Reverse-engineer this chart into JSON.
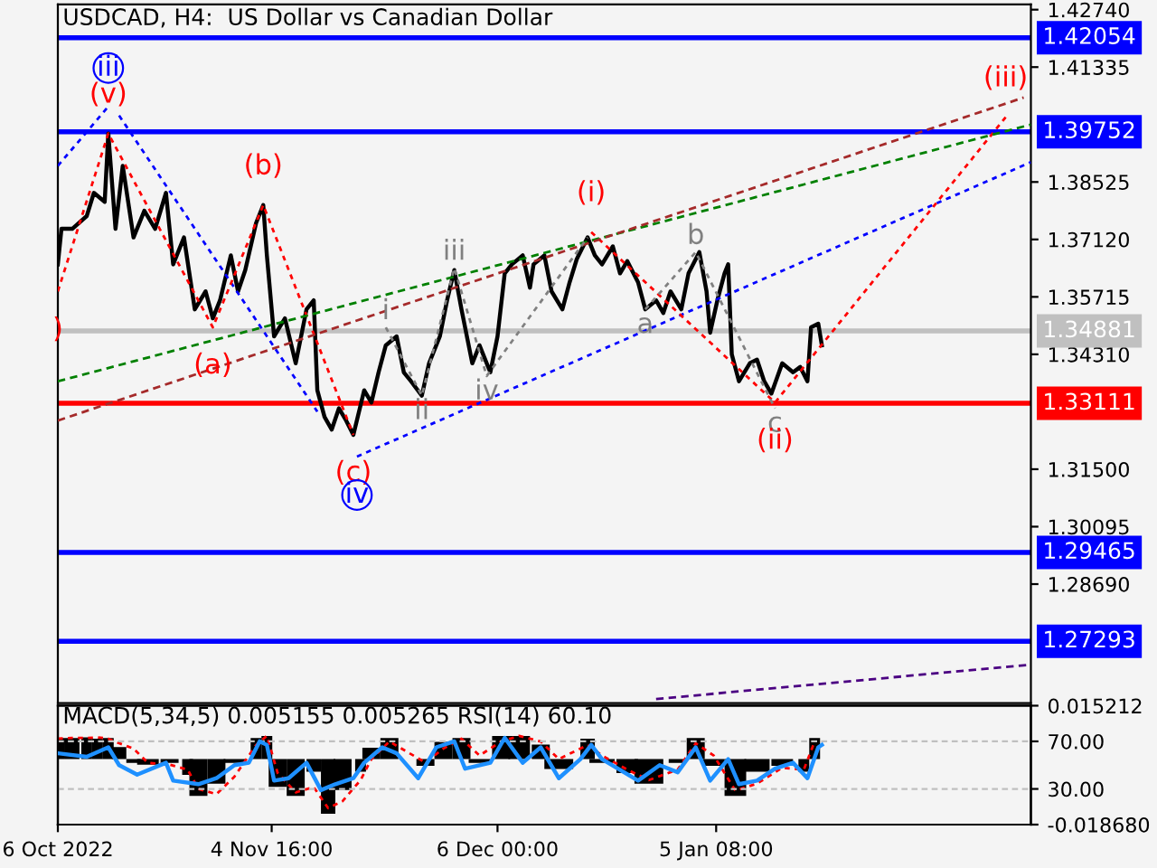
{
  "chart_data": [
    {
      "type": "line",
      "title": "USDCAD, H4:  US Dollar vs Canadian Dollar",
      "tick_labels": "y",
      "grid": false,
      "legend": false,
      "x": [
        "2022-10-06T00:00",
        "2022-10-06T12:00",
        "2022-10-08T00:00",
        "2022-10-10T00:00",
        "2022-10-11T00:00",
        "2022-10-12T12:00",
        "2022-10-13T00:00",
        "2022-10-14T00:00",
        "2022-10-15T00:00",
        "2022-10-16T12:00",
        "2022-10-18T00:00",
        "2022-10-19T12:00",
        "2022-10-21T00:00",
        "2022-10-22T00:00",
        "2022-10-23T12:00",
        "2022-10-25T00:00",
        "2022-10-26T12:00",
        "2022-10-27T12:00",
        "2022-10-28T12:00",
        "2022-10-30T00:00",
        "2022-10-31T00:00",
        "2022-11-01T00:00",
        "2022-11-02T12:00",
        "2022-11-03T12:00",
        "2022-11-04T00:00",
        "2022-11-05T00:00",
        "2022-11-06T12:00",
        "2022-11-08T00:00",
        "2022-11-09T12:00",
        "2022-11-10T12:00",
        "2022-11-11T00:00",
        "2022-11-12T00:00",
        "2022-11-13T00:00",
        "2022-11-14T00:00",
        "2022-11-15T00:00",
        "2022-11-16T00:00",
        "2022-11-17T12:00",
        "2022-11-18T12:00",
        "2022-11-19T12:00",
        "2022-11-20T12:00",
        "2022-11-22T00:00",
        "2022-11-23T00:00",
        "2022-11-24T00:00",
        "2022-11-25T12:00",
        "2022-11-26T12:00",
        "2022-11-28T00:00",
        "2022-11-29T00:00",
        "2022-11-30T00:00",
        "2022-12-01T00:00",
        "2022-12-02T12:00",
        "2022-12-03T12:00",
        "2022-12-05T00:00",
        "2022-12-06T00:00",
        "2022-12-07T00:00",
        "2022-12-08T00:00",
        "2022-12-09T12:00",
        "2022-12-10T12:00",
        "2022-12-11T00:00",
        "2022-12-12T12:00",
        "2022-12-13T12:00",
        "2022-12-15T00:00",
        "2022-12-16T00:00",
        "2022-12-17T00:00",
        "2022-12-18T12:00",
        "2022-12-19T12:00",
        "2022-12-20T12:00",
        "2022-12-22T00:00",
        "2022-12-23T00:00",
        "2022-12-24T00:00",
        "2022-12-25T12:00",
        "2022-12-26T12:00",
        "2022-12-28T00:00",
        "2022-12-29T00:00",
        "2022-12-30T00:00",
        "2022-12-31T12:00",
        "2023-01-01T12:00",
        "2023-01-03T00:00",
        "2023-01-04T00:00",
        "2023-01-04T12:00",
        "2023-01-05T12:00",
        "2023-01-06T12:00",
        "2023-01-07T00:00",
        "2023-01-07T12:00",
        "2023-01-08T12:00",
        "2023-01-10T00:00",
        "2023-01-11T00:00",
        "2023-01-12T00:00",
        "2023-01-13T00:00",
        "2023-01-14T12:00",
        "2023-01-16T00:00",
        "2023-01-17T00:00",
        "2023-01-18T00:00",
        "2023-01-18T12:00",
        "2023-01-19T12:00",
        "2023-01-20T00:00"
      ],
      "series": [
        {
          "color": "#000000",
          "values": [
            1.3651,
            1.3738,
            1.3738,
            1.3769,
            1.3826,
            1.3804,
            1.3971,
            1.3738,
            1.3892,
            1.3717,
            1.3782,
            1.3738,
            1.3826,
            1.3651,
            1.3717,
            1.3541,
            1.3585,
            1.3519,
            1.3563,
            1.3673,
            1.3585,
            1.3637,
            1.3752,
            1.3796,
            1.3673,
            1.3475,
            1.3519,
            1.3409,
            1.3541,
            1.3563,
            1.3343,
            1.3278,
            1.3247,
            1.3299,
            1.3269,
            1.3234,
            1.3343,
            1.3313,
            1.3387,
            1.3453,
            1.3475,
            1.3387,
            1.3365,
            1.333,
            1.3409,
            1.3475,
            1.3563,
            1.3637,
            1.3541,
            1.3409,
            1.3453,
            1.3387,
            1.3475,
            1.3629,
            1.3651,
            1.3673,
            1.3594,
            1.3651,
            1.3673,
            1.3585,
            1.3541,
            1.3607,
            1.3664,
            1.3717,
            1.3673,
            1.3651,
            1.3695,
            1.3629,
            1.3659,
            1.3607,
            1.3541,
            1.3563,
            1.3532,
            1.3585,
            1.3541,
            1.3629,
            1.3681,
            1.3585,
            1.3484,
            1.3563,
            1.3629,
            1.3651,
            1.3431,
            1.3365,
            1.3409,
            1.3418,
            1.3365,
            1.3335,
            1.3409,
            1.3387,
            1.34,
            1.3365,
            1.3497,
            1.3506,
            1.3453
          ]
        },
        {
          "type": "line",
          "line_style": "dotted",
          "color": "#0000ff",
          "x": [
            "2022-10-06T00:00",
            "2022-10-13T00:00"
          ],
          "values": [
            1.3892,
            1.4037
          ]
        },
        {
          "type": "line",
          "line_style": "dotted",
          "color": "#0000ff",
          "x": [
            "2022-10-14T12:00",
            "2022-11-11T00:00"
          ],
          "values": [
            1.4015,
            1.3291
          ]
        },
        {
          "type": "line",
          "line_style": "dotted",
          "color": "#0000ff",
          "x": [
            "2022-11-16T12:00",
            "2023-02-18T00:00"
          ],
          "values": [
            1.3181,
            1.3901
          ]
        },
        {
          "type": "line",
          "line_style": "dotted",
          "color": "#ff0000",
          "x": [
            "2022-10-06T00:00",
            "2022-10-13T00:00",
            "2022-10-27T12:00",
            "2022-11-03T12:00",
            "2022-11-16T00:00"
          ],
          "values": [
            1.3585,
            1.3971,
            1.3497,
            1.3796,
            1.3234
          ]
        },
        {
          "type": "line",
          "line_style": "dotted",
          "color": "#ff0000",
          "x": [
            "2022-12-19T00:00",
            "2023-01-13T12:00",
            "2023-02-14T12:00"
          ],
          "values": [
            1.373,
            1.3313,
            1.4011
          ]
        },
        {
          "type": "line",
          "line_style": "dashed",
          "color": "#008000",
          "x": [
            "2022-10-06T00:00",
            "2023-02-18T00:00"
          ],
          "values": [
            1.3365,
            1.3993
          ]
        },
        {
          "type": "line",
          "line_style": "dashed",
          "color": "#a52a2a",
          "x": [
            "2022-10-06T00:00",
            "2023-02-17T00:00"
          ],
          "values": [
            1.3269,
            1.4059
          ]
        },
        {
          "type": "line",
          "line_style": "dotted",
          "color": "#808080",
          "x": [
            "2022-11-20T12:00",
            "2022-11-25T12:00",
            "2022-11-30T00:00",
            "2022-12-04T12:00",
            "2022-12-18T12:00"
          ],
          "values": [
            1.3497,
            1.333,
            1.3642,
            1.3378,
            1.3717
          ]
        },
        {
          "type": "line",
          "line_style": "dotted",
          "color": "#808080",
          "x": [
            "2022-12-26T12:00",
            "2023-01-02T12:00",
            "2023-01-13T12:00"
          ],
          "values": [
            1.3541,
            1.3681,
            1.3299
          ]
        },
        {
          "type": "line",
          "line_style": "dashed",
          "color": "#4b0082",
          "x": [
            "2022-12-28T00:00",
            "2023-02-18T00:00"
          ],
          "values": [
            1.2588,
            1.2672
          ]
        }
      ],
      "xlim": [
        "2022-10-06T00:00",
        "2023-02-18T00:00"
      ],
      "ylim": [
        1.2578,
        1.4287
      ],
      "yticks": [
        {
          "value": 1.4274,
          "label": "1.42740"
        },
        {
          "value": 1.41335,
          "label": "1.41335"
        },
        {
          "value": 1.38525,
          "label": "1.38525"
        },
        {
          "value": 1.3712,
          "label": "1.37120"
        },
        {
          "value": 1.35715,
          "label": "1.35715"
        },
        {
          "value": 1.3431,
          "label": "1.34310"
        },
        {
          "value": 1.315,
          "label": "1.31500"
        },
        {
          "value": 1.30095,
          "label": "1.30095"
        },
        {
          "value": 1.2869,
          "label": "1.28690"
        }
      ],
      "ref_lines": [
        {
          "axis": "y",
          "value": 1.42054,
          "label": "1.42054",
          "color": "#0000ff"
        },
        {
          "axis": "y",
          "value": 1.39752,
          "label": "1.39752",
          "color": "#0000ff"
        },
        {
          "axis": "y",
          "value": 1.34881,
          "label": "1.34881",
          "color": "#c0c0c0"
        },
        {
          "axis": "y",
          "value": 1.33111,
          "label": "1.33111",
          "color": "#ff0000"
        },
        {
          "axis": "y",
          "value": 1.29465,
          "label": "1.29465",
          "color": "#0000ff"
        },
        {
          "axis": "y",
          "value": 1.27293,
          "label": "1.27293",
          "color": "#0000ff"
        }
      ],
      "annotations": [
        {
          "text": "iii",
          "x": "2022-10-13T00:00",
          "y": 1.4037
        },
        {
          "text": "(v)",
          "x": "2022-10-13T00:00",
          "y": 1.3971
        },
        {
          "text": "(b)",
          "x": "2022-11-03T12:00",
          "y": 1.3796
        },
        {
          "text": "(a)",
          "x": "2022-10-27T12:00",
          "y": 1.3497
        },
        {
          "text": "(c)",
          "x": "2022-11-16T00:00",
          "y": 1.3234
        },
        {
          "text": "iv",
          "x": "2022-11-16T12:00",
          "y": 1.3181
        },
        {
          "text": "i",
          "x": "2022-11-20T12:00",
          "y": 1.3497
        },
        {
          "text": "ii",
          "x": "2022-11-25T12:00",
          "y": 1.333
        },
        {
          "text": "iii",
          "x": "2022-11-30T00:00",
          "y": 1.3642
        },
        {
          "text": "iv",
          "x": "2022-12-04T12:00",
          "y": 1.3378
        },
        {
          "text": "(i)",
          "x": "2022-12-19T00:00",
          "y": 1.373
        },
        {
          "text": "a",
          "x": "2022-12-26T12:00",
          "y": 1.3541
        },
        {
          "text": "b",
          "x": "2023-01-02T12:00",
          "y": 1.3681
        },
        {
          "text": "c",
          "x": "2023-01-13T12:00",
          "y": 1.3299
        },
        {
          "text": "(ii)",
          "x": "2023-01-13T12:00",
          "y": 1.3313
        },
        {
          "text": "(iii)",
          "x": "2023-02-14T12:00",
          "y": 1.4011
        },
        {
          "text": ")",
          "x": "2022-10-06T00:00",
          "y": 1.3585
        }
      ]
    },
    {
      "type": "bar",
      "title": "MACD(5,34,5) 0.005155 0.005265 RSI(14) 60.10",
      "grid": false,
      "legend": false,
      "series": [
        {
          "type": "bar",
          "color": "#000000",
          "x": [
            "2022-10-06T00:00",
            "2022-10-08T00:00",
            "2022-10-10T00:00",
            "2022-10-11T12:00",
            "2022-10-13T00:00",
            "2022-10-14T12:00",
            "2022-10-16T12:00",
            "2022-10-18T12:00",
            "2022-10-21T12:00",
            "2022-10-24T00:00",
            "2022-10-25T12:00",
            "2022-10-28T00:00",
            "2022-10-30T12:00",
            "2022-11-02T12:00",
            "2022-11-04T00:00",
            "2022-11-05T12:00",
            "2022-11-08T00:00",
            "2022-11-10T12:00",
            "2022-11-12T12:00",
            "2022-11-14T12:00",
            "2022-11-17T00:00",
            "2022-11-18T12:00",
            "2022-11-21T00:00",
            "2022-11-23T12:00",
            "2022-11-26T00:00",
            "2022-11-28T12:00",
            "2022-12-01T00:00",
            "2022-12-03T12:00",
            "2022-12-06T12:00",
            "2022-12-09T00:00",
            "2022-12-12T00:00",
            "2022-12-14T12:00",
            "2022-12-18T12:00",
            "2022-12-20T12:00",
            "2022-12-24T00:00",
            "2022-12-27T00:00",
            "2022-12-31T00:00",
            "2023-01-02T12:00",
            "2023-01-05T00:00",
            "2023-01-08T00:00",
            "2023-01-11T00:00",
            "2023-01-14T12:00",
            "2023-01-17T12:00",
            "2023-01-19T00:00"
          ],
          "values": [
            0.006,
            0.006,
            0.0062,
            0.0058,
            0.006,
            0.0034,
            -0.0011,
            -0.0016,
            -0.0011,
            -0.0045,
            -0.0105,
            -0.007,
            -0.0011,
            0.006,
            0.0066,
            -0.0079,
            -0.0105,
            -0.0036,
            -0.0156,
            -0.0088,
            -0.0036,
            0.0032,
            0.006,
            null,
            -0.0019,
            0.0049,
            0.006,
            -0.0011,
            0.0066,
            0.0066,
            0.0041,
            -0.0028,
            0.0058,
            -0.0011,
            -0.004,
            -0.007,
            -0.0011,
            0.006,
            -0.0019,
            -0.0105,
            -0.0036,
            -0.0019,
            -0.0036,
            0.006
          ]
        },
        {
          "type": "line",
          "line_style": "dotted",
          "color": "#ff0000",
          "x": [
            "2022-10-06T00:00",
            "2022-10-08T00:00",
            "2022-10-10T00:00",
            "2022-10-11T12:00",
            "2022-10-13T00:00",
            "2022-10-14T12:00",
            "2022-10-16T12:00",
            "2022-10-18T12:00",
            "2022-10-21T12:00",
            "2022-10-24T00:00",
            "2022-10-25T12:00",
            "2022-10-28T00:00",
            "2022-10-30T12:00",
            "2022-11-02T12:00",
            "2022-11-04T00:00",
            "2022-11-05T12:00",
            "2022-11-08T00:00",
            "2022-11-10T12:00",
            "2022-11-12T12:00",
            "2022-11-14T12:00",
            "2022-11-17T00:00",
            "2022-11-18T12:00",
            "2022-11-21T00:00",
            "2022-11-23T12:00",
            "2022-11-26T00:00",
            "2022-11-28T12:00",
            "2022-12-01T00:00",
            "2022-12-03T12:00",
            "2022-12-06T12:00",
            "2022-12-09T00:00",
            "2022-12-12T00:00",
            "2022-12-14T12:00",
            "2022-12-18T12:00",
            "2022-12-20T12:00",
            "2022-12-24T00:00",
            "2022-12-27T00:00",
            "2022-12-31T00:00",
            "2023-01-02T12:00",
            "2023-01-05T00:00",
            "2023-01-08T00:00",
            "2023-01-11T00:00",
            "2023-01-14T12:00",
            "2023-01-17T12:00",
            "2023-01-19T00:00"
          ],
          "values": [
            0.0058,
            0.006,
            0.006,
            0.0062,
            0.0058,
            0.0045,
            0.003,
            -0.0011,
            -0.0016,
            -0.003,
            -0.0085,
            -0.01,
            -0.005,
            0.004,
            0.0066,
            -0.004,
            -0.0095,
            -0.008,
            -0.014,
            -0.012,
            -0.006,
            0.0,
            0.005,
            0.002,
            -0.001,
            0.003,
            0.0058,
            0.001,
            0.005,
            0.0066,
            0.005,
            0.0,
            0.004,
            0.001,
            -0.003,
            -0.006,
            -0.003,
            0.0045,
            0.001,
            -0.009,
            -0.007,
            -0.0025,
            -0.003,
            0.005
          ]
        },
        {
          "type": "line",
          "axis": "y2",
          "color": "#1e90ff",
          "x": [
            "2022-10-06T00:00",
            "2022-10-10T00:00",
            "2022-10-13T00:00",
            "2022-10-14T12:00",
            "2022-10-17T00:00",
            "2022-10-21T00:00",
            "2022-10-22T00:00",
            "2022-10-25T12:00",
            "2022-10-28T00:00",
            "2022-10-30T12:00",
            "2022-11-01T12:00",
            "2022-11-03T00:00",
            "2022-11-04T00:00",
            "2022-11-05T00:00",
            "2022-11-07T00:00",
            "2022-11-09T12:00",
            "2022-11-11T12:00",
            "2022-11-13T12:00",
            "2022-11-16T00:00",
            "2022-11-17T12:00",
            "2022-11-20T00:00",
            "2022-11-22T00:00",
            "2022-11-25T00:00",
            "2022-11-27T12:00",
            "2022-11-30T00:00",
            "2022-12-01T12:00",
            "2022-12-05T00:00",
            "2022-12-07T00:00",
            "2022-12-09T12:00",
            "2022-12-12T00:00",
            "2022-12-14T12:00",
            "2022-12-17T12:00",
            "2022-12-19T00:00",
            "2022-12-20T12:00",
            "2022-12-25T12:00",
            "2022-12-28T12:00",
            "2022-12-31T00:00",
            "2023-01-02T12:00",
            "2023-01-04T12:00",
            "2023-01-07T00:00",
            "2023-01-08T12:00",
            "2023-01-11T00:00",
            "2023-01-13T12:00",
            "2023-01-16T00:00",
            "2023-01-18T00:00",
            "2023-01-19T12:00",
            "2023-01-20T00:00"
          ],
          "values": [
            60,
            57,
            65,
            50,
            42,
            52,
            37,
            34,
            39,
            50,
            52,
            70,
            67,
            37,
            39,
            52,
            29,
            34,
            39,
            52,
            65,
            60,
            39,
            65,
            70,
            47,
            52,
            73,
            52,
            65,
            39,
            55,
            67,
            55,
            37,
            50,
            44,
            65,
            37,
            55,
            34,
            37,
            47,
            52,
            39,
            65,
            67
          ]
        }
      ],
      "xlim": [
        "2022-10-06T00:00",
        "2023-02-18T00:00"
      ],
      "ylim": [
        -0.01868,
        0.015212
      ],
      "y2lim": [
        0,
        100
      ],
      "xticks": [
        {
          "value": "2022-10-06T00:00",
          "label": "6 Oct 2022"
        },
        {
          "value": "2022-11-04T16:00",
          "label": "4 Nov 16:00"
        },
        {
          "value": "2022-12-06T00:00",
          "label": "6 Dec 00:00"
        },
        {
          "value": "2023-01-05T08:00",
          "label": "5 Jan 08:00"
        }
      ],
      "yticks": [
        {
          "value": 0.015212,
          "label": "0.015212"
        },
        {
          "value": -0.01868,
          "label": "-0.018680"
        }
      ],
      "y2ticks": [
        {
          "value": 70,
          "label": "70.00"
        },
        {
          "value": 30,
          "label": "30.00"
        }
      ],
      "ref_lines": [
        {
          "axis": "y2",
          "value": 70,
          "color": "#c0c0c0",
          "line_style": "dashed"
        },
        {
          "axis": "y2",
          "value": 30,
          "color": "#c0c0c0",
          "line_style": "dashed"
        }
      ]
    }
  ]
}
